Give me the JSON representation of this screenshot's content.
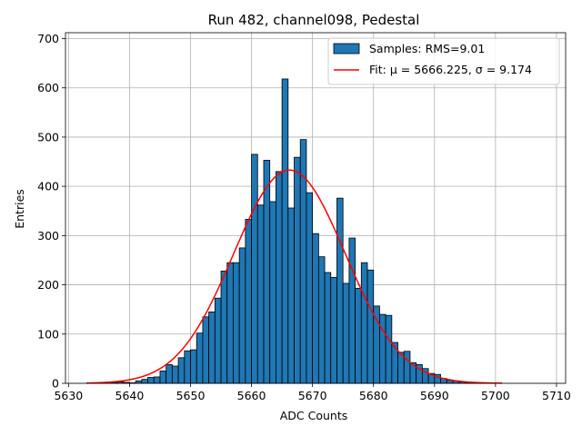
{
  "chart_data": {
    "type": "bar",
    "title": "Run 482, channel098, Pedestal",
    "xlabel": "ADC Counts",
    "ylabel": "Entries",
    "xlim": [
      5629.5,
      5711.5
    ],
    "ylim": [
      0,
      712
    ],
    "grid": true,
    "x_ticks": [
      5630,
      5640,
      5650,
      5660,
      5670,
      5680,
      5690,
      5700,
      5710
    ],
    "y_ticks": [
      0,
      100,
      200,
      300,
      400,
      500,
      600,
      700
    ],
    "legend_position": "top-right",
    "legend": [
      "Samples: RMS=9.01",
      "Fit: μ = 5666.225, σ = 9.174"
    ],
    "histogram": {
      "name": "Samples: RMS=9.01",
      "color": "#1f77b4",
      "edge_color": "#000000",
      "bin_width": 1,
      "bin_starts": [
        5633,
        5634,
        5635,
        5636,
        5637,
        5638,
        5639,
        5640,
        5641,
        5642,
        5643,
        5644,
        5645,
        5646,
        5647,
        5648,
        5649,
        5650,
        5651,
        5652,
        5653,
        5654,
        5655,
        5656,
        5657,
        5658,
        5659,
        5660,
        5661,
        5662,
        5663,
        5664,
        5665,
        5666,
        5667,
        5668,
        5669,
        5670,
        5671,
        5672,
        5673,
        5674,
        5675,
        5676,
        5677,
        5678,
        5679,
        5680,
        5681,
        5682,
        5683,
        5684,
        5685,
        5686,
        5687,
        5688,
        5689,
        5690,
        5691,
        5692,
        5693,
        5694,
        5695,
        5696,
        5697,
        5698,
        5699,
        5700
      ],
      "values": [
        1,
        1,
        1,
        1,
        2,
        3,
        2,
        1,
        5,
        8,
        12,
        13,
        25,
        38,
        35,
        52,
        66,
        68,
        102,
        135,
        145,
        173,
        228,
        245,
        245,
        275,
        333,
        465,
        362,
        453,
        369,
        430,
        618,
        356,
        459,
        495,
        387,
        304,
        257,
        225,
        215,
        376,
        203,
        295,
        193,
        245,
        230,
        157,
        140,
        138,
        83,
        63,
        65,
        42,
        38,
        30,
        20,
        18,
        10,
        6,
        5,
        3,
        2,
        1,
        1,
        1,
        1,
        1
      ]
    },
    "fit": {
      "name": "Fit: μ = 5666.225, σ = 9.174",
      "color": "#ff0000",
      "mu": 5666.225,
      "sigma": 9.174,
      "amplitude": 433,
      "x_range": [
        5633,
        5701
      ]
    }
  }
}
